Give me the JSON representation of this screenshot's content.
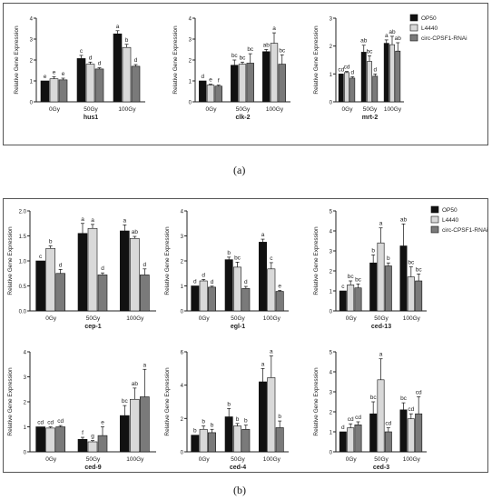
{
  "panels": [
    {
      "label": "(a)"
    },
    {
      "label": "(b)"
    }
  ],
  "legend_a": [
    "OP50",
    "L4440",
    "circ-CPSF1-RNAi"
  ],
  "legend_b": [
    "OP50",
    "L4440",
    "circ-CPSF1-RNAi"
  ],
  "colors": {
    "OP50": "#111111",
    "L4440": "#d9d9d9",
    "circ-CPSF1-RNAi": "#7a7a7a"
  },
  "chart_data": [
    {
      "type": "bar",
      "title": "hus1",
      "ylabel": "Relative Gene Expression",
      "categories": [
        "0Gy",
        "50Gy",
        "100Gy"
      ],
      "ylim": [
        0,
        4
      ],
      "yticks": [
        "0",
        "1",
        "2",
        "3",
        "4"
      ],
      "series": [
        {
          "name": "OP50",
          "values": [
            1.0,
            2.07,
            3.25
          ],
          "err": [
            0.0,
            0.15,
            0.15
          ],
          "letters": [
            "e",
            "c",
            "a"
          ]
        },
        {
          "name": "L4440",
          "values": [
            1.1,
            1.8,
            2.6
          ],
          "err": [
            0.1,
            0.1,
            0.15
          ],
          "letters": [
            "e",
            "d",
            "b"
          ]
        },
        {
          "name": "circ-CPSF1-RNAi",
          "values": [
            1.05,
            1.57,
            1.7
          ],
          "err": [
            0.08,
            0.06,
            0.08
          ],
          "letters": [
            "e",
            "d",
            "d"
          ]
        }
      ]
    },
    {
      "type": "bar",
      "title": "clk-2",
      "ylabel": "Relative Gene Expression",
      "categories": [
        "0Gy",
        "50Gy",
        "100Gy"
      ],
      "ylim": [
        0,
        4
      ],
      "yticks": [
        "0",
        "1",
        "2",
        "3",
        "4"
      ],
      "series": [
        {
          "name": "OP50",
          "values": [
            1.0,
            1.75,
            2.4
          ],
          "err": [
            0.0,
            0.25,
            0.1
          ],
          "letters": [
            "d",
            "bc",
            "ab"
          ]
        },
        {
          "name": "L4440",
          "values": [
            0.8,
            1.8,
            2.8
          ],
          "err": [
            0.04,
            0.1,
            0.5
          ],
          "letters": [
            "e",
            "bc",
            "a"
          ]
        },
        {
          "name": "circ-CPSF1-RNAi",
          "values": [
            0.75,
            1.85,
            1.8
          ],
          "err": [
            0.05,
            0.45,
            0.45
          ],
          "letters": [
            "f",
            "bc",
            "bc"
          ]
        }
      ]
    },
    {
      "type": "bar",
      "title": "mrt-2",
      "ylabel": "Relative Gene Expression",
      "categories": [
        "0Gy",
        "50Gy",
        "100Gy"
      ],
      "ylim": [
        0,
        3
      ],
      "yticks": [
        "0",
        "1",
        "2",
        "3"
      ],
      "series": [
        {
          "name": "OP50",
          "values": [
            1.0,
            1.78,
            2.1
          ],
          "err": [
            0.0,
            0.25,
            0.12
          ],
          "letters": [
            "cd",
            "ab",
            "a"
          ]
        },
        {
          "name": "L4440",
          "values": [
            1.05,
            1.45,
            2.05
          ],
          "err": [
            0.04,
            0.2,
            0.3
          ],
          "letters": [
            "cd",
            "bc",
            "ab"
          ]
        },
        {
          "name": "circ-CPSF1-RNAi",
          "values": [
            0.85,
            0.92,
            1.82
          ],
          "err": [
            0.05,
            0.08,
            0.3
          ],
          "letters": [
            "d",
            "d",
            "ab"
          ]
        }
      ]
    },
    {
      "type": "bar",
      "title": "cep-1",
      "ylabel": "Relative Gene Expression",
      "categories": [
        "0Gy",
        "50Gy",
        "100Gy"
      ],
      "ylim": [
        0,
        2
      ],
      "yticks": [
        "0.0",
        "0.5",
        "1.0",
        "1.5",
        "2.0"
      ],
      "series": [
        {
          "name": "OP50",
          "values": [
            1.0,
            1.55,
            1.6
          ],
          "err": [
            0.0,
            0.2,
            0.12
          ],
          "letters": [
            "c",
            "a",
            "a"
          ]
        },
        {
          "name": "L4440",
          "values": [
            1.25,
            1.65,
            1.45
          ],
          "err": [
            0.05,
            0.08,
            0.04
          ],
          "letters": [
            "b",
            "a",
            "ab"
          ]
        },
        {
          "name": "circ-CPSF1-RNAi",
          "values": [
            0.75,
            0.72,
            0.72
          ],
          "err": [
            0.08,
            0.04,
            0.12
          ],
          "letters": [
            "d",
            "d",
            "d"
          ]
        }
      ]
    },
    {
      "type": "bar",
      "title": "egl-1",
      "ylabel": "Relative Gene Expression",
      "categories": [
        "0Gy",
        "50Gy",
        "100Gy"
      ],
      "ylim": [
        0,
        4
      ],
      "yticks": [
        "0",
        "1",
        "2",
        "3",
        "4"
      ],
      "series": [
        {
          "name": "OP50",
          "values": [
            1.0,
            2.05,
            2.75
          ],
          "err": [
            0.0,
            0.1,
            0.12
          ],
          "letters": [
            "d",
            "b",
            "a"
          ]
        },
        {
          "name": "L4440",
          "values": [
            1.2,
            1.75,
            1.68
          ],
          "err": [
            0.06,
            0.2,
            0.25
          ],
          "letters": [
            "d",
            "bc",
            "c"
          ]
        },
        {
          "name": "circ-CPSF1-RNAi",
          "values": [
            0.95,
            0.9,
            0.78
          ],
          "err": [
            0.04,
            0.08,
            0.04
          ],
          "letters": [
            "d",
            "d",
            "e"
          ]
        }
      ]
    },
    {
      "type": "bar",
      "title": "ced-13",
      "ylabel": "Relative Gene Expression",
      "categories": [
        "0Gy",
        "50Gy",
        "100Gy"
      ],
      "ylim": [
        0,
        5
      ],
      "yticks": [
        "0",
        "1",
        "2",
        "3",
        "4",
        "5"
      ],
      "series": [
        {
          "name": "OP50",
          "values": [
            1.0,
            2.4,
            3.25
          ],
          "err": [
            0.0,
            0.4,
            1.1
          ],
          "letters": [
            "c",
            "b",
            "ab"
          ]
        },
        {
          "name": "L4440",
          "values": [
            1.3,
            3.4,
            1.7
          ],
          "err": [
            0.2,
            0.75,
            0.5
          ],
          "letters": [
            "bc",
            "a",
            "bc"
          ]
        },
        {
          "name": "circ-CPSF1-RNAi",
          "values": [
            1.15,
            2.25,
            1.5
          ],
          "err": [
            0.2,
            0.15,
            0.35
          ],
          "letters": [
            "bc",
            "b",
            "bc"
          ]
        }
      ]
    },
    {
      "type": "bar",
      "title": "ced-9",
      "ylabel": "Relative Gene Expression",
      "categories": [
        "0Gy",
        "50Gy",
        "100Gy"
      ],
      "ylim": [
        0,
        4
      ],
      "yticks": [
        "0",
        "1",
        "2",
        "3",
        "4"
      ],
      "series": [
        {
          "name": "OP50",
          "values": [
            1.0,
            0.5,
            1.45
          ],
          "err": [
            0.0,
            0.08,
            0.4
          ],
          "letters": [
            "cd",
            "f",
            "bc"
          ]
        },
        {
          "name": "L4440",
          "values": [
            0.95,
            0.4,
            2.1
          ],
          "err": [
            0.05,
            0.05,
            0.45
          ],
          "letters": [
            "cd",
            "g",
            "ab"
          ]
        },
        {
          "name": "circ-CPSF1-RNAi",
          "values": [
            1.0,
            0.65,
            2.2
          ],
          "err": [
            0.05,
            0.35,
            1.1
          ],
          "letters": [
            "cd",
            "e",
            "a"
          ]
        }
      ]
    },
    {
      "type": "bar",
      "title": "ced-4",
      "ylabel": "Relative Gene Expression",
      "categories": [
        "0Gy",
        "50Gy",
        "100Gy"
      ],
      "ylim": [
        0,
        6
      ],
      "yticks": [
        "0",
        "2",
        "4",
        "6"
      ],
      "series": [
        {
          "name": "OP50",
          "values": [
            1.0,
            2.1,
            4.2
          ],
          "err": [
            0.0,
            0.5,
            0.8
          ],
          "letters": [
            "b",
            "b",
            "a"
          ]
        },
        {
          "name": "L4440",
          "values": [
            1.35,
            1.55,
            4.45
          ],
          "err": [
            0.2,
            0.15,
            1.3
          ],
          "letters": [
            "b",
            "b",
            "a"
          ]
        },
        {
          "name": "circ-CPSF1-RNAi",
          "values": [
            1.15,
            1.35,
            1.45
          ],
          "err": [
            0.2,
            0.25,
            0.4
          ],
          "letters": [
            "b",
            "b",
            "b"
          ]
        }
      ]
    },
    {
      "type": "bar",
      "title": "ced-3",
      "ylabel": "Relative Gene Expression",
      "categories": [
        "0Gy",
        "50Gy",
        "100Gy"
      ],
      "ylim": [
        0,
        5
      ],
      "yticks": [
        "0",
        "1",
        "2",
        "3",
        "4",
        "5"
      ],
      "series": [
        {
          "name": "OP50",
          "values": [
            1.0,
            1.9,
            2.1
          ],
          "err": [
            0.0,
            0.6,
            0.35
          ],
          "letters": [
            "d",
            "bc",
            "bc"
          ]
        },
        {
          "name": "L4440",
          "values": [
            1.2,
            3.6,
            1.65
          ],
          "err": [
            0.2,
            1.05,
            0.25
          ],
          "letters": [
            "cd",
            "a",
            "cd"
          ]
        },
        {
          "name": "circ-CPSF1-RNAi",
          "values": [
            1.35,
            1.0,
            1.9
          ],
          "err": [
            0.15,
            0.2,
            0.85
          ],
          "letters": [
            "cd",
            "cd",
            "cd"
          ]
        }
      ]
    }
  ]
}
